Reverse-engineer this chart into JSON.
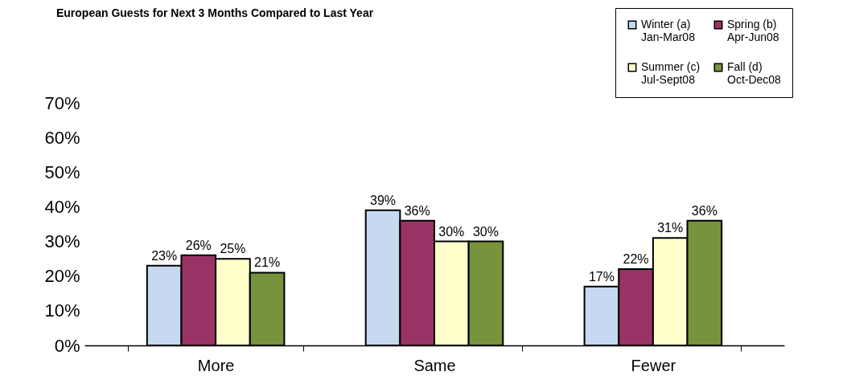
{
  "chart_data": {
    "type": "bar",
    "title": "European Guests for Next 3 Months Compared to Last Year",
    "categories": [
      "More",
      "Same",
      "Fewer"
    ],
    "series": [
      {
        "name": "Winter (a)\nJan-Mar08",
        "color": "#c6d9f1",
        "values": [
          23,
          39,
          17
        ],
        "value_labels": [
          "23%",
          "39%",
          "17%"
        ]
      },
      {
        "name": "Spring (b)\nApr-Jun08",
        "color": "#993366",
        "values": [
          26,
          36,
          22
        ],
        "value_labels": [
          "26%",
          "36%",
          "22%"
        ]
      },
      {
        "name": "Summer (c)\nJul-Sept08",
        "color": "#ffffcc",
        "values": [
          25,
          30,
          31
        ],
        "value_labels": [
          "25%",
          "30%",
          "31%"
        ]
      },
      {
        "name": "Fall (d)\nOct-Dec08",
        "color": "#77933c",
        "values": [
          21,
          30,
          36
        ],
        "value_labels": [
          "21%",
          "30%",
          "36%"
        ]
      }
    ],
    "ylim": [
      0,
      70
    ],
    "yticks": [
      {
        "value": 0,
        "label": "0%"
      },
      {
        "value": 10,
        "label": "10%"
      },
      {
        "value": 20,
        "label": "20%"
      },
      {
        "value": 30,
        "label": "30%"
      },
      {
        "value": 40,
        "label": "40%"
      },
      {
        "value": 50,
        "label": "50%"
      },
      {
        "value": 60,
        "label": "60%"
      },
      {
        "value": 70,
        "label": "70%"
      }
    ],
    "grid": false,
    "legend": "top right"
  }
}
